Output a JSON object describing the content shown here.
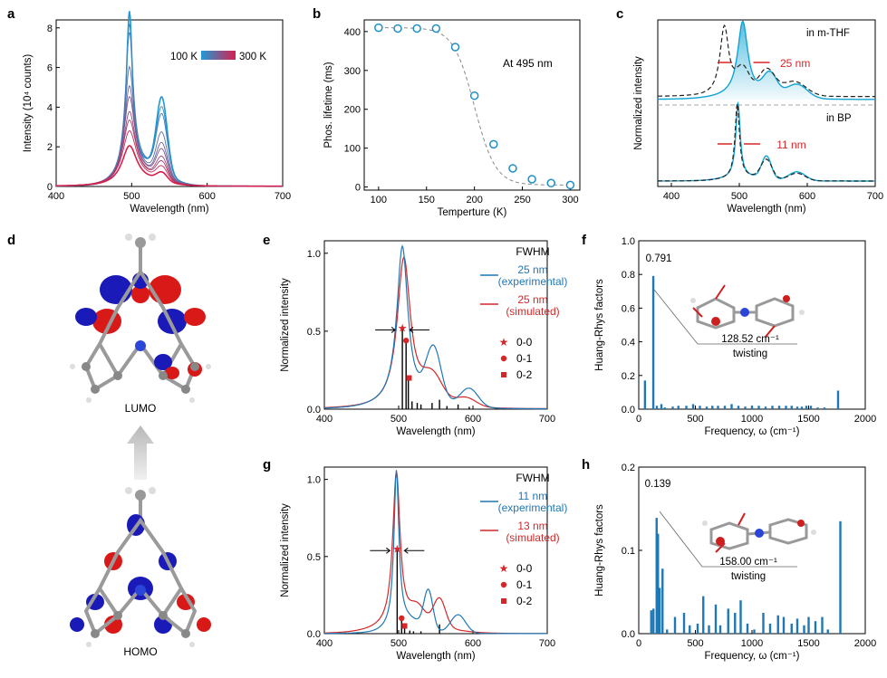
{
  "colors": {
    "blue": "#1f77b4",
    "red": "#d62728",
    "cyan": "#0fa3d3",
    "black": "#000000",
    "grey": "#888888"
  },
  "panel_labels": {
    "a": "a",
    "b": "b",
    "c": "c",
    "d": "d",
    "e": "e",
    "f": "f",
    "g": "g",
    "h": "h"
  },
  "chart_data": [
    {
      "id": "a",
      "type": "line",
      "xlabel": "Wavelength (nm)",
      "ylabel": "Intensity (10⁴ counts)",
      "xlim": [
        400,
        700
      ],
      "ylim": [
        0,
        8.4
      ],
      "xticks": [
        400,
        500,
        600,
        700
      ],
      "yticks": [
        0,
        2,
        4,
        6,
        8
      ],
      "legend": {
        "low": "100 K",
        "high": "300 K"
      },
      "peak_values": [
        8.2,
        7.6,
        7.2,
        5.6,
        4.7,
        4.2,
        3.5,
        3.1,
        2.6,
        1.9
      ],
      "shoulder_ratio": 0.45
    },
    {
      "id": "b",
      "type": "scatter",
      "xlabel": "Temperture (K)",
      "ylabel": "Phos. lifetime (ms)",
      "xlim": [
        85,
        310
      ],
      "ylim": [
        -8,
        430
      ],
      "xticks": [
        100,
        150,
        200,
        250,
        300
      ],
      "yticks": [
        0,
        100,
        200,
        300,
        400
      ],
      "annotation": "At 495 nm",
      "x": [
        100,
        120,
        140,
        160,
        180,
        200,
        220,
        240,
        260,
        280,
        300
      ],
      "y": [
        410,
        408,
        408,
        408,
        360,
        235,
        110,
        48,
        20,
        10,
        5
      ]
    },
    {
      "id": "c",
      "type": "line",
      "xlabel": "Wavelength (nm)",
      "ylabel": "Normalized intensity",
      "xlim": [
        380,
        700
      ],
      "xticks": [
        400,
        500,
        600,
        700
      ],
      "label_top": "in m-THF",
      "label_bottom": "in BP",
      "fwhm_top": "25 nm",
      "fwhm_bottom": "11 nm"
    },
    {
      "id": "e",
      "type": "line",
      "xlabel": "Wavelength (nm)",
      "ylabel": "Normalized intensity",
      "xlim": [
        400,
        700
      ],
      "ylim": [
        0,
        1.08
      ],
      "xticks": [
        400,
        500,
        600,
        700
      ],
      "yticks": [
        0.0,
        0.5,
        1.0
      ],
      "legend_title": "FWHM",
      "exp_label": "25 nm",
      "exp_sub": "(experimental)",
      "sim_label": "25 nm",
      "sim_sub": "(simulated)",
      "transitions": [
        "0-0",
        "0-1",
        "0-2"
      ],
      "transition_x": [
        505,
        510,
        514
      ],
      "transition_y": [
        0.52,
        0.44,
        0.2
      ]
    },
    {
      "id": "f",
      "type": "bar",
      "xlabel": "Frequency, ω  (cm⁻¹)",
      "ylabel": "Huang-Rhys factors",
      "xlim": [
        0,
        2000
      ],
      "ylim": [
        0,
        1.0
      ],
      "xticks": [
        0,
        500,
        1000,
        1500,
        2000
      ],
      "yticks": [
        0.0,
        0.2,
        0.4,
        0.6,
        0.8,
        1.0
      ],
      "peak_label": "0.791",
      "mode_label": "128.52 cm⁻¹",
      "mode_desc": "twisting",
      "x": [
        55,
        128.52,
        160,
        200,
        230,
        300,
        350,
        420,
        480,
        540,
        600,
        650,
        700,
        760,
        820,
        880,
        940,
        1000,
        1060,
        1120,
        1180,
        1240,
        1300,
        1350,
        1400,
        1440,
        1480,
        1520,
        1580,
        1640,
        1760
      ],
      "values": [
        0.17,
        0.791,
        0.02,
        0.03,
        0.01,
        0.015,
        0.02,
        0.02,
        0.03,
        0.02,
        0.015,
        0.02,
        0.02,
        0.02,
        0.03,
        0.02,
        0.015,
        0.02,
        0.02,
        0.015,
        0.02,
        0.02,
        0.02,
        0.02,
        0.015,
        0.015,
        0.02,
        0.02,
        0.01,
        0.01,
        0.11
      ]
    },
    {
      "id": "g",
      "type": "line",
      "xlabel": "Wavelength (nm)",
      "ylabel": "Normalized intensity",
      "xlim": [
        400,
        700
      ],
      "ylim": [
        0,
        1.08
      ],
      "xticks": [
        400,
        500,
        600,
        700
      ],
      "yticks": [
        0.0,
        0.5,
        1.0
      ],
      "legend_title": "FWHM",
      "exp_label": "11 nm",
      "exp_sub": "(experimental)",
      "sim_label": "13 nm",
      "sim_sub": "(simulated)",
      "transitions": [
        "0-0",
        "0-1",
        "0-2"
      ],
      "transition_x": [
        498,
        504,
        508
      ],
      "transition_y": [
        0.55,
        0.1,
        0.05
      ]
    },
    {
      "id": "h",
      "type": "bar",
      "xlabel": "Frequency, ω  (cm⁻¹)",
      "ylabel": "Huang-Rhys factors",
      "xlim": [
        0,
        2000
      ],
      "ylim": [
        0,
        0.2
      ],
      "xticks": [
        0,
        500,
        1000,
        1500,
        2000
      ],
      "yticks": [
        0.0,
        0.1,
        0.2
      ],
      "peak_label": "0.139",
      "mode_label": "158.00 cm⁻¹",
      "mode_desc": "twisting",
      "x": [
        110,
        130,
        158,
        170,
        185,
        210,
        250,
        320,
        400,
        450,
        520,
        570,
        620,
        680,
        720,
        790,
        850,
        900,
        960,
        1020,
        1100,
        1160,
        1230,
        1280,
        1350,
        1400,
        1460,
        1500,
        1560,
        1620,
        1670,
        1780
      ],
      "values": [
        0.028,
        0.03,
        0.139,
        0.12,
        0.055,
        0.078,
        0.005,
        0.02,
        0.025,
        0.01,
        0.012,
        0.045,
        0.01,
        0.035,
        0.01,
        0.03,
        0.025,
        0.04,
        0.012,
        0.005,
        0.025,
        0.012,
        0.022,
        0.02,
        0.012,
        0.018,
        0.01,
        0.02,
        0.015,
        0.02,
        0.005,
        0.135
      ]
    }
  ],
  "molecules": {
    "lumo_label": "LUMO",
    "homo_label": "HOMO"
  }
}
